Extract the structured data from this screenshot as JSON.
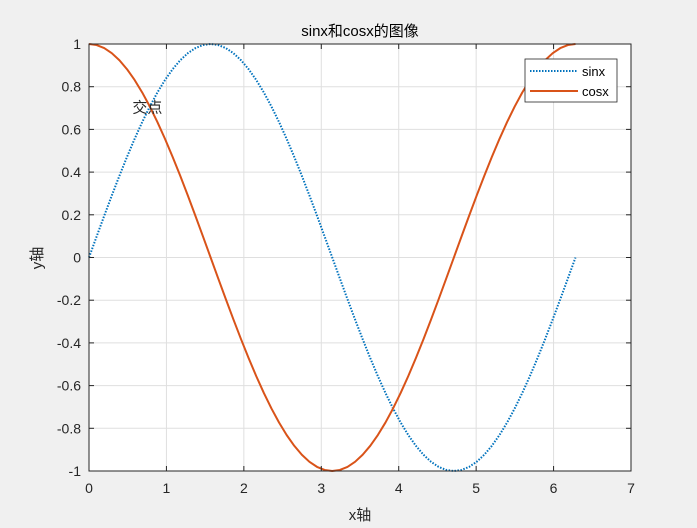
{
  "chart_data": {
    "type": "line",
    "title": "sinx和cosx的图像",
    "xlabel": "x轴",
    "ylabel": "y轴",
    "xlim": [
      0,
      7
    ],
    "ylim": [
      -1,
      1
    ],
    "xticks": [
      "0",
      "1",
      "2",
      "3",
      "4",
      "5",
      "6",
      "7"
    ],
    "yticks": [
      "1",
      "0.8",
      "0.6",
      "0.4",
      "0.2",
      "0",
      "-0.2",
      "-0.4",
      "-0.6",
      "-0.8",
      "-1"
    ],
    "grid": true,
    "legend_position": "top-right",
    "x_range": [
      0,
      6.283
    ],
    "series": [
      {
        "name": "sinx",
        "function": "sin",
        "style": "dotted",
        "color": "#0072BD"
      },
      {
        "name": "cosx",
        "function": "cos",
        "style": "solid",
        "color": "#D95319"
      }
    ],
    "annotations": [
      {
        "text": "交点",
        "x": 0.78,
        "y": 0.707
      }
    ]
  }
}
